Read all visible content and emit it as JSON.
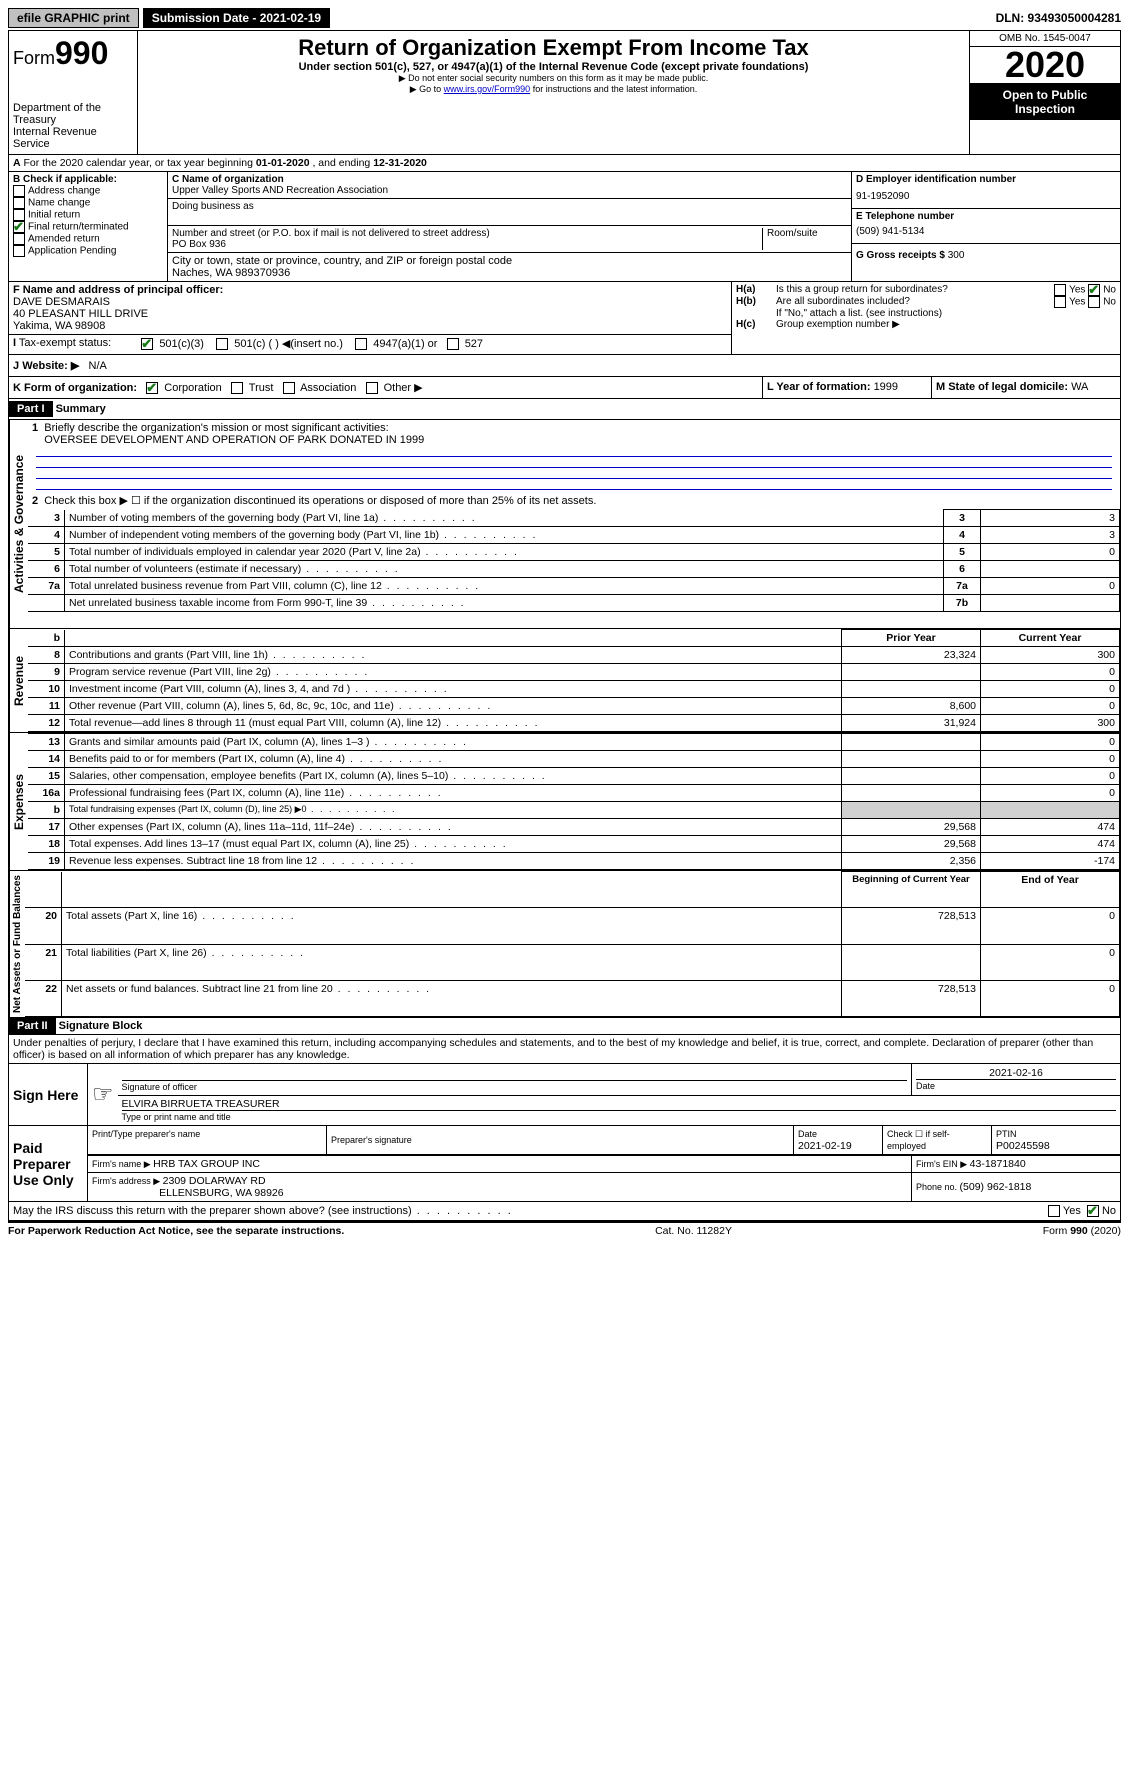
{
  "topbar": {
    "efile": "efile GRAPHIC print",
    "submission_label": "Submission Date - 2021-02-19",
    "dln": "DLN: 93493050004281"
  },
  "header": {
    "form_label": "Form",
    "form_num": "990",
    "dept": "Department of the Treasury",
    "irs": "Internal Revenue Service",
    "title": "Return of Organization Exempt From Income Tax",
    "sub1": "Under section 501(c), 527, or 4947(a)(1) of the Internal Revenue Code (except private foundations)",
    "sub2": "▶ Do not enter social security numbers on this form as it may be made public.",
    "sub3_pre": "▶ Go to ",
    "sub3_link": "www.irs.gov/Form990",
    "sub3_post": " for instructions and the latest information.",
    "omb": "OMB No. 1545-0047",
    "year": "2020",
    "open": "Open to Public Inspection"
  },
  "lineA": {
    "text_pre": "For the 2020 calendar year, or tax year beginning ",
    "begin": "01-01-2020",
    "mid": " , and ending ",
    "end": "12-31-2020"
  },
  "boxB": {
    "label": "B Check if applicable:",
    "items": [
      "Address change",
      "Name change",
      "Initial return",
      "Final return/terminated",
      "Amended return",
      "Application Pending"
    ],
    "checked_index": 3
  },
  "boxC": {
    "name_label": "C Name of organization",
    "name": "Upper Valley Sports AND Recreation Association",
    "dba_label": "Doing business as",
    "addr_label": "Number and street (or P.O. box if mail is not delivered to street address)",
    "room_label": "Room/suite",
    "addr": "PO Box 936",
    "city_label": "City or town, state or province, country, and ZIP or foreign postal code",
    "city": "Naches, WA  989370936"
  },
  "boxD": {
    "label": "D Employer identification number",
    "value": "91-1952090"
  },
  "boxE": {
    "label": "E Telephone number",
    "value": "(509) 941-5134"
  },
  "boxG": {
    "label": "G Gross receipts $ ",
    "value": "300"
  },
  "boxF": {
    "label": "F Name and address of principal officer:",
    "name": "DAVE DESMARAIS",
    "addr1": "40 PLEASANT HILL DRIVE",
    "addr2": "Yakima, WA  98908"
  },
  "boxH": {
    "a": "Is this a group return for subordinates?",
    "b": "Are all subordinates included?",
    "note": "If \"No,\" attach a list. (see instructions)",
    "c": "Group exemption number ▶"
  },
  "lineI": {
    "label": "Tax-exempt status:",
    "opts": [
      "501(c)(3)",
      "501(c) (  ) ◀(insert no.)",
      "4947(a)(1) or",
      "527"
    ]
  },
  "lineJ": {
    "label": "Website: ▶",
    "value": "N/A"
  },
  "lineK": {
    "label": "K Form of organization:",
    "opts": [
      "Corporation",
      "Trust",
      "Association",
      "Other ▶"
    ]
  },
  "lineL": {
    "label": "L Year of formation: ",
    "value": "1999"
  },
  "lineM": {
    "label": "M State of legal domicile: ",
    "value": "WA"
  },
  "part1": {
    "label": "Part I",
    "title": "Summary",
    "q1": "Briefly describe the organization's mission or most significant activities:",
    "q1v": "OVERSEE DEVELOPMENT AND OPERATION OF PARK DONATED IN 1999",
    "q2": "Check this box ▶ ☐  if the organization discontinued its operations or disposed of more than 25% of its net assets.",
    "rows_gov": [
      {
        "n": "3",
        "t": "Number of voting members of the governing body (Part VI, line 1a)",
        "bn": "3",
        "v": "3"
      },
      {
        "n": "4",
        "t": "Number of independent voting members of the governing body (Part VI, line 1b)",
        "bn": "4",
        "v": "3"
      },
      {
        "n": "5",
        "t": "Total number of individuals employed in calendar year 2020 (Part V, line 2a)",
        "bn": "5",
        "v": "0"
      },
      {
        "n": "6",
        "t": "Total number of volunteers (estimate if necessary)",
        "bn": "6",
        "v": ""
      },
      {
        "n": "7a",
        "t": "Total unrelated business revenue from Part VIII, column (C), line 12",
        "bn": "7a",
        "v": "0"
      },
      {
        "n": "",
        "t": "Net unrelated business taxable income from Form 990-T, line 39",
        "bn": "7b",
        "v": ""
      }
    ],
    "col_headers": {
      "b": "b",
      "prior": "Prior Year",
      "current": "Current Year"
    },
    "rows_rev": [
      {
        "n": "8",
        "t": "Contributions and grants (Part VIII, line 1h)",
        "p": "23,324",
        "c": "300"
      },
      {
        "n": "9",
        "t": "Program service revenue (Part VIII, line 2g)",
        "p": "",
        "c": "0"
      },
      {
        "n": "10",
        "t": "Investment income (Part VIII, column (A), lines 3, 4, and 7d )",
        "p": "",
        "c": "0"
      },
      {
        "n": "11",
        "t": "Other revenue (Part VIII, column (A), lines 5, 6d, 8c, 9c, 10c, and 11e)",
        "p": "8,600",
        "c": "0"
      },
      {
        "n": "12",
        "t": "Total revenue—add lines 8 through 11 (must equal Part VIII, column (A), line 12)",
        "p": "31,924",
        "c": "300"
      }
    ],
    "rows_exp": [
      {
        "n": "13",
        "t": "Grants and similar amounts paid (Part IX, column (A), lines 1–3 )",
        "p": "",
        "c": "0"
      },
      {
        "n": "14",
        "t": "Benefits paid to or for members (Part IX, column (A), line 4)",
        "p": "",
        "c": "0"
      },
      {
        "n": "15",
        "t": "Salaries, other compensation, employee benefits (Part IX, column (A), lines 5–10)",
        "p": "",
        "c": "0"
      },
      {
        "n": "16a",
        "t": "Professional fundraising fees (Part IX, column (A), line 11e)",
        "p": "",
        "c": "0"
      },
      {
        "n": "b",
        "t": "Total fundraising expenses (Part IX, column (D), line 25) ▶0",
        "p": "shade",
        "c": "shade"
      },
      {
        "n": "17",
        "t": "Other expenses (Part IX, column (A), lines 11a–11d, 11f–24e)",
        "p": "29,568",
        "c": "474"
      },
      {
        "n": "18",
        "t": "Total expenses. Add lines 13–17 (must equal Part IX, column (A), line 25)",
        "p": "29,568",
        "c": "474"
      },
      {
        "n": "19",
        "t": "Revenue less expenses. Subtract line 18 from line 12",
        "p": "2,356",
        "c": "-174"
      }
    ],
    "col_headers2": {
      "prior": "Beginning of Current Year",
      "current": "End of Year"
    },
    "rows_net": [
      {
        "n": "20",
        "t": "Total assets (Part X, line 16)",
        "p": "728,513",
        "c": "0"
      },
      {
        "n": "21",
        "t": "Total liabilities (Part X, line 26)",
        "p": "",
        "c": "0"
      },
      {
        "n": "22",
        "t": "Net assets or fund balances. Subtract line 21 from line 20",
        "p": "728,513",
        "c": "0"
      }
    ],
    "vlabels": {
      "gov": "Activities & Governance",
      "rev": "Revenue",
      "exp": "Expenses",
      "net": "Net Assets or Fund Balances"
    }
  },
  "part2": {
    "label": "Part II",
    "title": "Signature Block",
    "perjury": "Under penalties of perjury, I declare that I have examined this return, including accompanying schedules and statements, and to the best of my knowledge and belief, it is true, correct, and complete. Declaration of preparer (other than officer) is based on all information of which preparer has any knowledge.",
    "sign_here": "Sign Here",
    "sig_officer": "Signature of officer",
    "date": "2021-02-16",
    "date_label": "Date",
    "officer_name": "ELVIRA BIRRUETA  TREASURER",
    "type_name": "Type or print name and title",
    "paid": "Paid Preparer Use Only",
    "prep_name_label": "Print/Type preparer's name",
    "prep_sig_label": "Preparer's signature",
    "prep_date_label": "Date",
    "prep_date": "2021-02-19",
    "check_label": "Check ☐ if self-employed",
    "ptin_label": "PTIN",
    "ptin": "P00245598",
    "firm_name_label": "Firm's name    ▶ ",
    "firm_name": "HRB TAX GROUP INC",
    "firm_ein_label": "Firm's EIN ▶ ",
    "firm_ein": "43-1871840",
    "firm_addr_label": "Firm's address ▶ ",
    "firm_addr1": "2309 DOLARWAY RD",
    "firm_addr2": "ELLENSBURG, WA  98926",
    "phone_label": "Phone no. ",
    "phone": "(509) 962-1818",
    "discuss": "May the IRS discuss this return with the preparer shown above? (see instructions)"
  },
  "footer": {
    "paperwork": "For Paperwork Reduction Act Notice, see the separate instructions.",
    "cat": "Cat. No. 11282Y",
    "form": "Form 990 (2020)"
  }
}
